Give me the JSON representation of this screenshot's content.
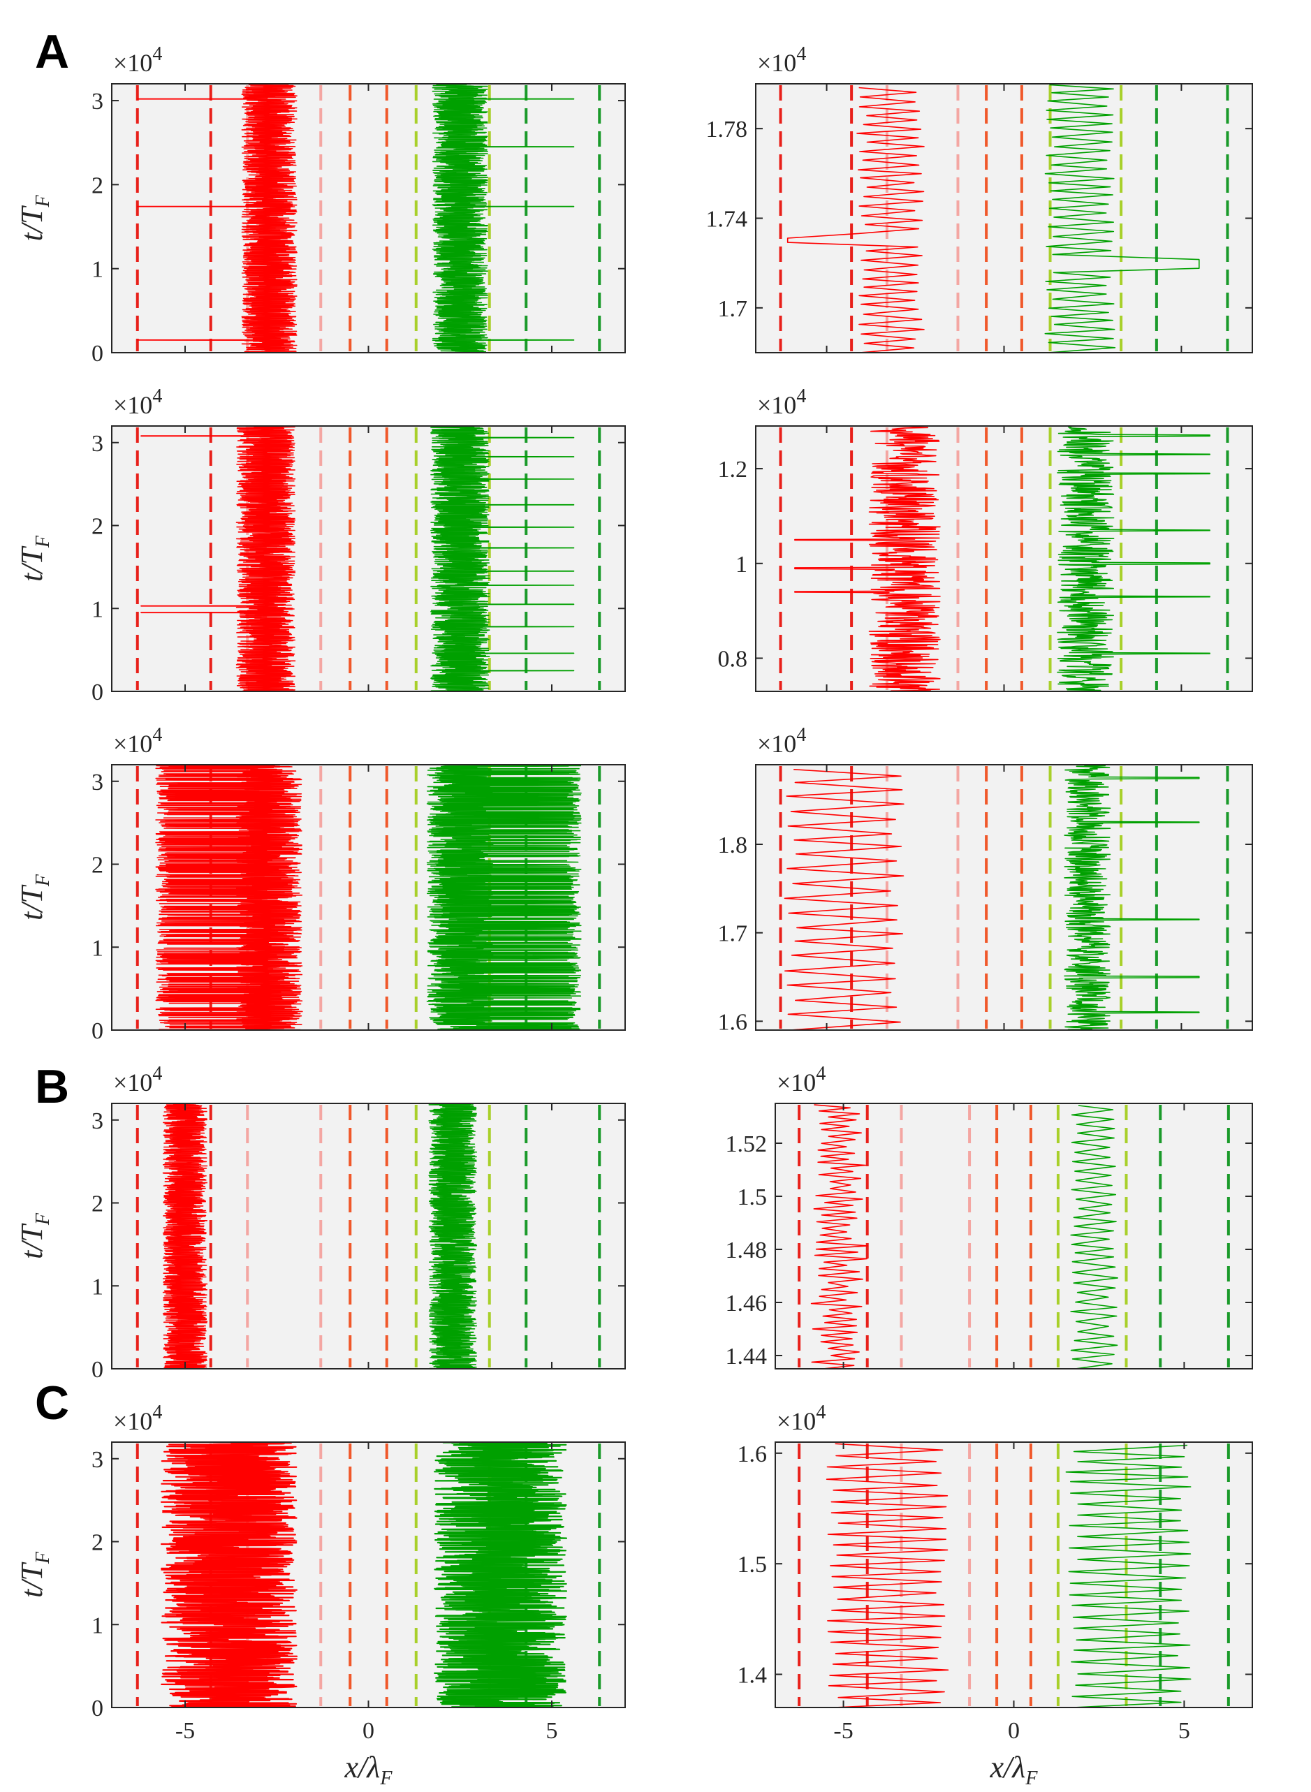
{
  "figure": {
    "panel_letters": [
      "A",
      "B",
      "C"
    ],
    "multiplier_label": "×10",
    "multiplier_exponent": "4",
    "xlabel_main": "x/λ",
    "xlabel_sub": "F",
    "ylabel_main": "t/T",
    "ylabel_sub": "F"
  },
  "colors": {
    "plot_bg": "#f2f2f2",
    "red_trace": "#ff0000",
    "green_trace": "#00a000",
    "dashed_lines": [
      "#e8201a",
      "#e8201a",
      "#f4a6a2",
      "#f4a6a2",
      "#f0582a",
      "#f0582a",
      "#a8d02a",
      "#a8d02a",
      "#1a9a2a",
      "#1a9a2a"
    ]
  },
  "chart_data": [
    {
      "id": "A1",
      "type": "line",
      "title": "",
      "xlabel": "",
      "ylabel": "t/T_F",
      "xlim": [
        -7,
        7
      ],
      "ylim": [
        0,
        32000
      ],
      "yticks": [
        0,
        10000,
        20000,
        30000
      ],
      "ytick_labels": [
        "0",
        "1",
        "2",
        "3"
      ],
      "xticks": [
        -5,
        0,
        5
      ],
      "xtick_labels": [],
      "multiplier": "×10^4",
      "dashed_lines_x": [
        -6.3,
        -4.3,
        -3.3,
        -1.3,
        -0.5,
        0.5,
        1.3,
        3.3,
        4.3,
        6.3
      ],
      "series": [
        {
          "name": "red droplet",
          "color": "#ff0000",
          "center": -2.7,
          "width": 1.5,
          "excursions": [
            {
              "t": 1500,
              "x": -6.3
            },
            {
              "t": 17400,
              "x": -6.3
            },
            {
              "t": 30200,
              "x": -6.3
            }
          ]
        },
        {
          "name": "green droplet",
          "color": "#00a000",
          "center": 2.5,
          "width": 1.5,
          "excursions": [
            {
              "t": 1500,
              "x": 5.6
            },
            {
              "t": 17400,
              "x": 5.6
            },
            {
              "t": 24500,
              "x": 5.6
            },
            {
              "t": 30200,
              "x": 5.6
            }
          ]
        }
      ]
    },
    {
      "id": "A2",
      "type": "line",
      "xlabel": "",
      "ylabel": "",
      "xlim": [
        -7,
        7
      ],
      "ylim": [
        16800,
        18000
      ],
      "yticks": [
        17000,
        17400,
        17800
      ],
      "ytick_labels": [
        "1.7",
        "1.74",
        "1.78"
      ],
      "xticks": [
        -5,
        0,
        5
      ],
      "xtick_labels": [],
      "multiplier": "×10^4",
      "dashed_lines_x": [
        -6.3,
        -4.3,
        -3.3,
        -1.3,
        -0.5,
        0.5,
        1.3,
        3.3,
        4.3,
        6.3
      ],
      "series": [
        {
          "name": "red droplet",
          "color": "#ff0000",
          "mode": "zigzag",
          "left": -4.0,
          "right": -2.4,
          "period": 40,
          "hop_at": 17300,
          "hop_x": -6.1
        },
        {
          "name": "green droplet",
          "color": "#00a000",
          "mode": "zigzag",
          "left": 1.3,
          "right": 3.0,
          "period": 40,
          "hop_at": 17200,
          "hop_x": 5.5
        }
      ]
    },
    {
      "id": "A3",
      "type": "line",
      "xlabel": "",
      "ylabel": "t/T_F",
      "xlim": [
        -7,
        7
      ],
      "ylim": [
        0,
        32000
      ],
      "yticks": [
        0,
        10000,
        20000,
        30000
      ],
      "ytick_labels": [
        "0",
        "1",
        "2",
        "3"
      ],
      "xticks": [
        -5,
        0,
        5
      ],
      "xtick_labels": [],
      "multiplier": "×10^4",
      "dashed_lines_x": [
        -6.3,
        -4.3,
        -3.3,
        -1.3,
        -0.5,
        0.5,
        1.3,
        3.3,
        4.3,
        6.3
      ],
      "series": [
        {
          "name": "red droplet",
          "color": "#ff0000",
          "center": -2.8,
          "width": 1.6,
          "excursions": [
            {
              "t": 9500,
              "x": -6.2
            },
            {
              "t": 10300,
              "x": -6.2
            },
            {
              "t": 30800,
              "x": -6.2
            }
          ]
        },
        {
          "name": "green droplet",
          "color": "#00a000",
          "center": 2.5,
          "width": 1.6,
          "excursions": [
            {
              "t": 2500,
              "x": 5.6
            },
            {
              "t": 4600,
              "x": 5.6
            },
            {
              "t": 7800,
              "x": 5.6
            },
            {
              "t": 10500,
              "x": 5.6
            },
            {
              "t": 12800,
              "x": 5.6
            },
            {
              "t": 14500,
              "x": 5.6
            },
            {
              "t": 17300,
              "x": 5.6
            },
            {
              "t": 19800,
              "x": 5.6
            },
            {
              "t": 22500,
              "x": 5.6
            },
            {
              "t": 25600,
              "x": 5.6
            },
            {
              "t": 28300,
              "x": 5.6
            },
            {
              "t": 30600,
              "x": 5.6
            }
          ]
        }
      ]
    },
    {
      "id": "A4",
      "type": "line",
      "xlabel": "",
      "ylabel": "",
      "xlim": [
        -7,
        7
      ],
      "ylim": [
        7300,
        12900
      ],
      "yticks": [
        8000,
        10000,
        12000
      ],
      "ytick_labels": [
        "0.8",
        "1",
        "1.2"
      ],
      "xticks": [
        -5,
        0,
        5
      ],
      "xtick_labels": [],
      "multiplier": "×10^4",
      "dashed_lines_x": [
        -6.3,
        -4.3,
        -3.3,
        -1.3,
        -0.5,
        0.5,
        1.3,
        3.3,
        4.3,
        6.3
      ],
      "series": [
        {
          "name": "red droplet",
          "color": "#ff0000",
          "mode": "dense",
          "left": -3.8,
          "right": -1.8,
          "hops": [
            {
              "t": 9400,
              "x": -5.9
            },
            {
              "t": 9900,
              "x": -5.9
            },
            {
              "t": 10500,
              "x": -5.9
            }
          ]
        },
        {
          "name": "green droplet",
          "color": "#00a000",
          "mode": "dense",
          "left": 1.5,
          "right": 3.1,
          "hops": [
            {
              "t": 8100,
              "x": 5.8
            },
            {
              "t": 9300,
              "x": 5.8
            },
            {
              "t": 10000,
              "x": 5.8
            },
            {
              "t": 10700,
              "x": 5.8
            },
            {
              "t": 11900,
              "x": 5.8
            },
            {
              "t": 12300,
              "x": 5.8
            },
            {
              "t": 12700,
              "x": 5.8
            }
          ]
        }
      ]
    },
    {
      "id": "A5",
      "type": "line",
      "xlabel": "",
      "ylabel": "t/T_F",
      "xlim": [
        -7,
        7
      ],
      "ylim": [
        0,
        32000
      ],
      "yticks": [
        0,
        10000,
        20000,
        30000
      ],
      "ytick_labels": [
        "0",
        "1",
        "2",
        "3"
      ],
      "xticks": [
        -5,
        0,
        5
      ],
      "xtick_labels": [],
      "multiplier": "×10^4",
      "dashed_lines_x": [
        -6.3,
        -4.3,
        -3.3,
        -1.3,
        -0.5,
        0.5,
        1.3,
        3.3,
        4.3,
        6.3
      ],
      "series": [
        {
          "name": "red droplet",
          "color": "#ff0000",
          "center": -2.7,
          "width": 1.8,
          "bursty": true,
          "outer": -5.6
        },
        {
          "name": "green droplet",
          "color": "#00a000",
          "center": 2.5,
          "width": 1.8,
          "bursty": true,
          "outer": 5.6
        }
      ]
    },
    {
      "id": "A6",
      "type": "line",
      "xlabel": "",
      "ylabel": "",
      "xlim": [
        -7,
        7
      ],
      "ylim": [
        15900,
        18900
      ],
      "yticks": [
        16000,
        17000,
        18000
      ],
      "ytick_labels": [
        "1.6",
        "1.7",
        "1.8"
      ],
      "xticks": [
        -5,
        0,
        5
      ],
      "xtick_labels": [],
      "multiplier": "×10^4",
      "dashed_lines_x": [
        -6.3,
        -4.3,
        -3.3,
        -1.3,
        -0.5,
        0.5,
        1.3,
        3.3,
        4.3,
        6.3
      ],
      "series": [
        {
          "name": "red droplet",
          "color": "#ff0000",
          "mode": "wide",
          "left": -6.0,
          "right": -3.0,
          "period": 160
        },
        {
          "name": "green droplet",
          "color": "#00a000",
          "mode": "dense_hops",
          "left": 1.7,
          "right": 3.0,
          "hops": [
            {
              "t": 16100,
              "x": 5.5
            },
            {
              "t": 16500,
              "x": 5.5
            },
            {
              "t": 17150,
              "x": 5.5
            },
            {
              "t": 18250,
              "x": 5.5
            },
            {
              "t": 18750,
              "x": 5.5
            }
          ]
        }
      ]
    },
    {
      "id": "B1",
      "type": "line",
      "xlabel": "",
      "ylabel": "t/T_F",
      "xlim": [
        -7,
        7
      ],
      "ylim": [
        0,
        32000
      ],
      "yticks": [
        0,
        10000,
        20000,
        30000
      ],
      "ytick_labels": [
        "0",
        "1",
        "2",
        "3"
      ],
      "xticks": [
        -5,
        0,
        5
      ],
      "xtick_labels": [],
      "multiplier": "×10^4",
      "dashed_lines_x": [
        -6.3,
        -4.3,
        -3.3,
        -1.3,
        -0.5,
        0.5,
        1.3,
        3.3,
        4.3,
        6.3
      ],
      "series": [
        {
          "name": "red droplet",
          "color": "#ff0000",
          "center": -5.0,
          "width": 1.2
        },
        {
          "name": "green droplet",
          "color": "#00a000",
          "center": 2.3,
          "width": 1.3
        }
      ]
    },
    {
      "id": "B2",
      "type": "line",
      "xlabel": "",
      "ylabel": "",
      "xlim": [
        -7,
        7
      ],
      "ylim": [
        14350,
        15350
      ],
      "yticks": [
        14400,
        14600,
        14800,
        15000,
        15200
      ],
      "ytick_labels": [
        "1.44",
        "1.46",
        "1.48",
        "1.5",
        "1.52"
      ],
      "xticks": [
        -5,
        0,
        5
      ],
      "xtick_labels": [],
      "multiplier": "×10^4",
      "dashed_lines_x": [
        -6.3,
        -4.3,
        -3.3,
        -1.3,
        -0.5,
        0.5,
        1.3,
        3.3,
        4.3,
        6.3
      ],
      "series": [
        {
          "name": "red droplet",
          "color": "#ff0000",
          "mode": "zigzag_noisy",
          "left": -5.6,
          "right": -4.6,
          "period": 25
        },
        {
          "name": "green droplet",
          "color": "#00a000",
          "mode": "zigzag",
          "left": 1.8,
          "right": 2.9,
          "period": 36
        }
      ]
    },
    {
      "id": "C1",
      "type": "line",
      "xlabel": "x/λ_F",
      "ylabel": "t/T_F",
      "xlim": [
        -7,
        7
      ],
      "ylim": [
        0,
        32000
      ],
      "yticks": [
        0,
        10000,
        20000,
        30000
      ],
      "ytick_labels": [
        "0",
        "1",
        "2",
        "3"
      ],
      "xticks": [
        -5,
        0,
        5
      ],
      "xtick_labels": [
        "-5",
        "0",
        "5"
      ],
      "multiplier": "×10^4",
      "dashed_lines_x": [
        -6.3,
        -4.3,
        -3.3,
        -1.3,
        -0.5,
        0.5,
        1.3,
        3.3,
        4.3,
        6.3
      ],
      "series": [
        {
          "name": "red droplet",
          "color": "#ff0000",
          "center": -3.8,
          "width": 3.7,
          "solid": true
        },
        {
          "name": "green droplet",
          "color": "#00a000",
          "center": 3.6,
          "width": 3.6,
          "solid": true
        }
      ]
    },
    {
      "id": "C2",
      "type": "line",
      "xlabel": "x/λ_F",
      "ylabel": "",
      "xlim": [
        -7,
        7
      ],
      "ylim": [
        13700,
        16100
      ],
      "yticks": [
        14000,
        15000,
        16000
      ],
      "ytick_labels": [
        "1.4",
        "1.5",
        "1.6"
      ],
      "xticks": [
        -5,
        0,
        5
      ],
      "xtick_labels": [
        "-5",
        "0",
        "5"
      ],
      "multiplier": "×10^4",
      "dashed_lines_x": [
        -6.3,
        -4.3,
        -3.3,
        -1.3,
        -0.5,
        0.5,
        1.3,
        3.3,
        4.3,
        6.3
      ],
      "series": [
        {
          "name": "red droplet",
          "color": "#ff0000",
          "mode": "wide",
          "left": -5.3,
          "right": -2.1,
          "period": 100
        },
        {
          "name": "green droplet",
          "color": "#00a000",
          "mode": "wide",
          "left": 1.7,
          "right": 5.0,
          "period": 100
        }
      ]
    }
  ]
}
